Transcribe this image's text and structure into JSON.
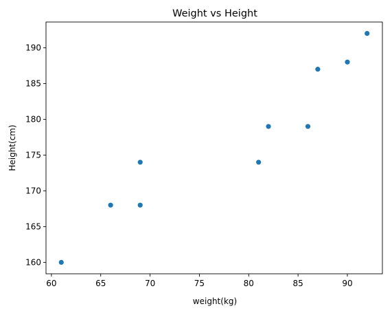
{
  "chart_data": {
    "type": "scatter",
    "title": "Weight vs Height",
    "xlabel": "weight(kg)",
    "ylabel": "Height(cm)",
    "x": [
      61,
      66,
      69,
      69,
      81,
      82,
      86,
      87,
      90,
      92
    ],
    "y": [
      160,
      168,
      168,
      174,
      174,
      179,
      179,
      187,
      188,
      192
    ],
    "xlim": [
      59.45,
      93.55
    ],
    "ylim": [
      158.4,
      193.6
    ],
    "xticks": [
      60,
      65,
      70,
      75,
      80,
      85,
      90
    ],
    "yticks": [
      160,
      165,
      170,
      175,
      180,
      185,
      190
    ],
    "grid": false,
    "marker_color": "#1f77b4"
  }
}
